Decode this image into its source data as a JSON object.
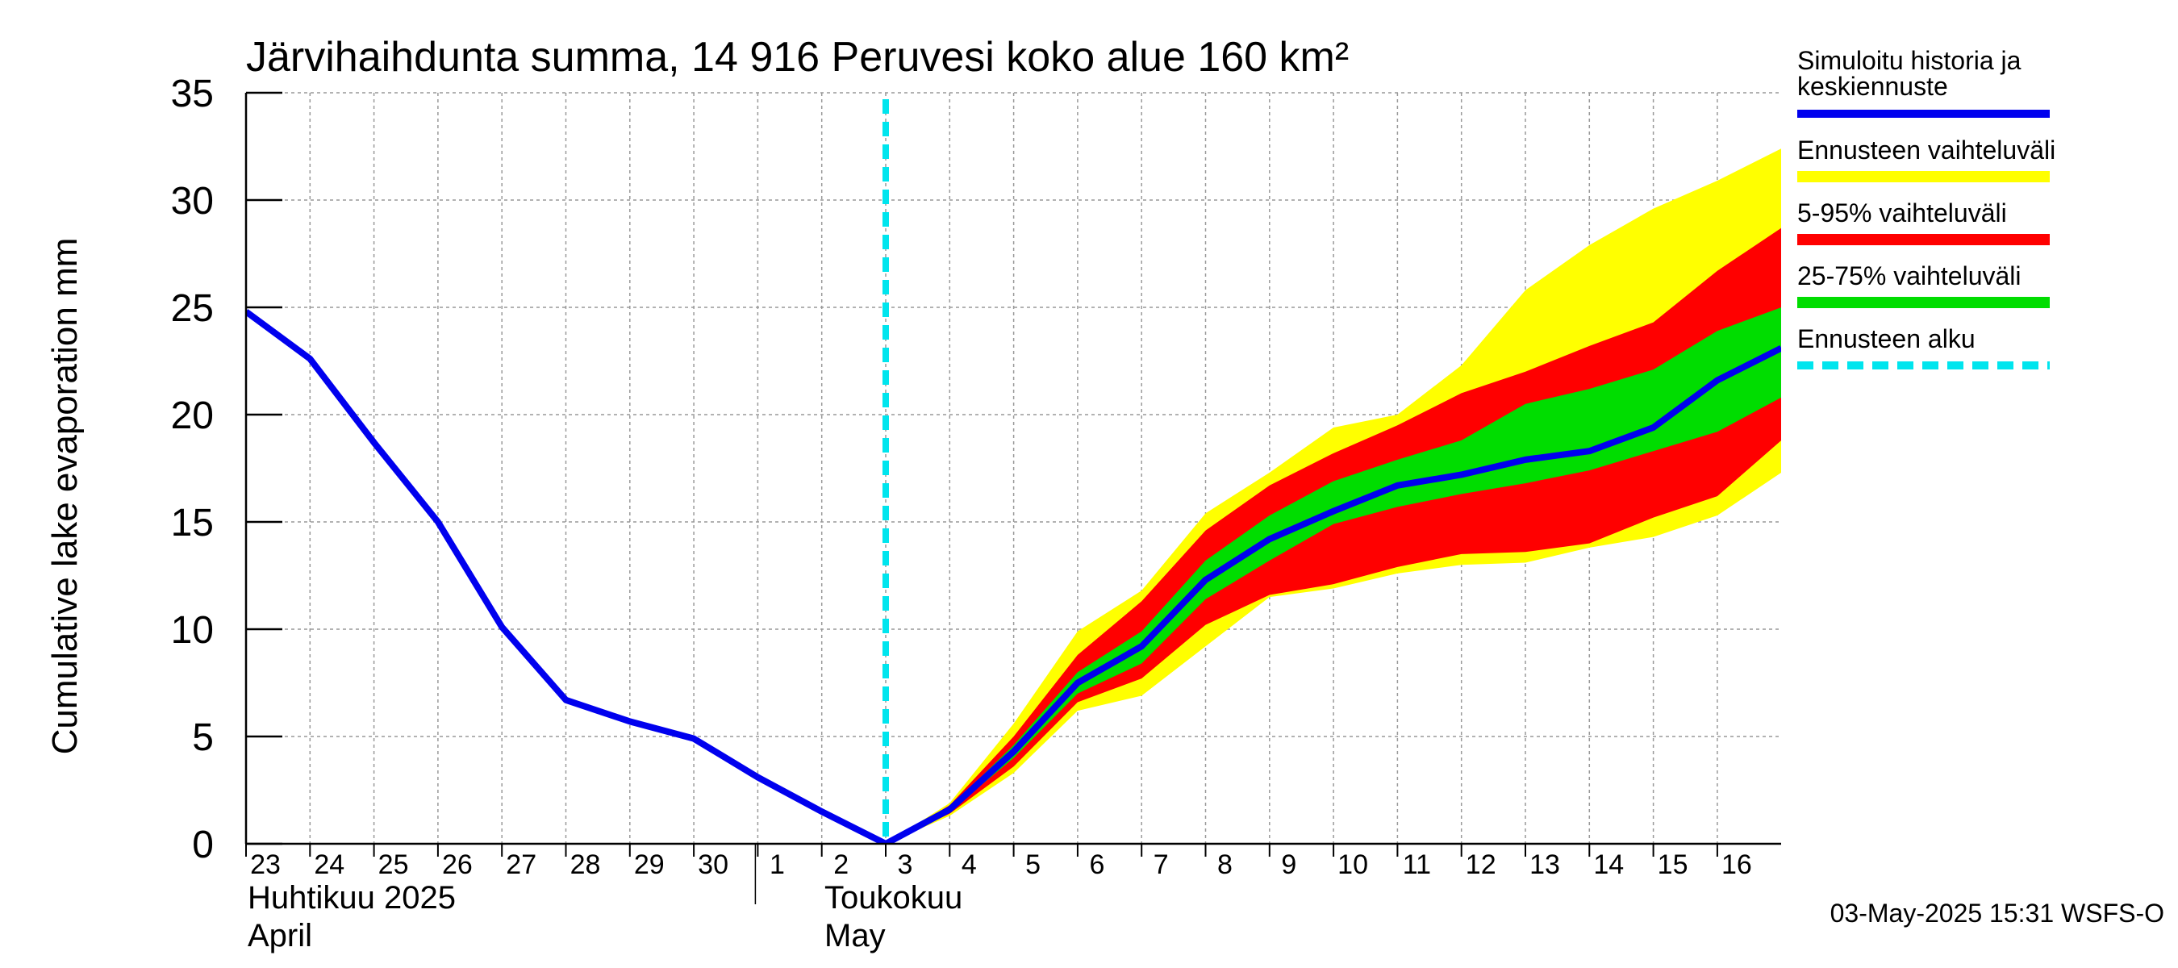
{
  "chart_data": {
    "type": "area",
    "title": "Järvihaihdunta summa, 14 916 Peruvesi koko alue 160 km²",
    "ylabel": "Cumulative lake evaporation   mm",
    "ylim": [
      0,
      35
    ],
    "yticks": [
      0,
      5,
      10,
      15,
      20,
      25,
      30,
      35
    ],
    "x_day_labels": [
      "23",
      "24",
      "25",
      "26",
      "27",
      "28",
      "29",
      "30",
      "1",
      "2",
      "3",
      "4",
      "5",
      "6",
      "7",
      "8",
      "9",
      "10",
      "11",
      "12",
      "13",
      "14",
      "15",
      "16"
    ],
    "month_labels": [
      {
        "line1": "Huhtikuu  2025",
        "line2": "April"
      },
      {
        "line1": "Toukokuu",
        "line2": "May"
      }
    ],
    "forecast_start_label": "3",
    "history": {
      "name": "Simuloitu historia ja keskiennuste",
      "color": "#0000ee",
      "x": [
        "23",
        "24",
        "25",
        "26",
        "27",
        "28",
        "29",
        "30",
        "1",
        "2",
        "3"
      ],
      "values": [
        24.8,
        22.6,
        18.7,
        15.0,
        10.1,
        6.7,
        5.7,
        4.9,
        3.1,
        1.5,
        0.0
      ]
    },
    "forecast_x": [
      "3",
      "4",
      "5",
      "6",
      "7",
      "8",
      "9",
      "10",
      "11",
      "12",
      "13",
      "14",
      "15",
      "16",
      "17"
    ],
    "median": [
      0.0,
      1.6,
      4.3,
      7.5,
      9.2,
      12.3,
      14.2,
      15.5,
      16.7,
      17.2,
      17.9,
      18.3,
      19.4,
      21.6,
      23.1
    ],
    "band_full": {
      "name": "Ennusteen vaihteluväli",
      "color": "#ffff00",
      "low": [
        0.0,
        1.3,
        3.3,
        6.2,
        6.9,
        9.2,
        11.5,
        11.9,
        12.6,
        13.0,
        13.1,
        13.8,
        14.3,
        15.3,
        17.3
      ],
      "high": [
        0.0,
        1.9,
        5.6,
        9.9,
        11.8,
        15.4,
        17.3,
        19.4,
        20.0,
        22.3,
        25.8,
        27.9,
        29.6,
        30.9,
        32.4
      ]
    },
    "band_5_95": {
      "name": "5-95% vaihteluväli",
      "color": "#ff0000",
      "low": [
        0.0,
        1.4,
        3.6,
        6.6,
        7.7,
        10.2,
        11.6,
        12.1,
        12.9,
        13.5,
        13.6,
        14.0,
        15.2,
        16.2,
        18.8
      ],
      "high": [
        0.0,
        1.8,
        5.0,
        8.8,
        11.3,
        14.6,
        16.7,
        18.2,
        19.5,
        21.0,
        22.0,
        23.2,
        24.3,
        26.7,
        28.7
      ]
    },
    "band_25_75": {
      "name": "25-75% vaihteluväli",
      "color": "#00dd00",
      "low": [
        0.0,
        1.5,
        4.0,
        7.0,
        8.4,
        11.4,
        13.2,
        14.9,
        15.7,
        16.3,
        16.8,
        17.4,
        18.3,
        19.2,
        20.8
      ],
      "high": [
        0.0,
        1.7,
        4.6,
        8.0,
        9.9,
        13.2,
        15.3,
        16.9,
        17.9,
        18.8,
        20.5,
        21.2,
        22.1,
        23.9,
        25.0
      ]
    },
    "forecast_start": {
      "name": "Ennusteen alku",
      "color": "#00e5ee"
    },
    "legend_position": "right",
    "grid": true
  },
  "legend": {
    "history_line1": "Simuloitu historia ja",
    "history_line2": "keskiennuste",
    "band_full": "Ennusteen vaihteluväli",
    "band_5_95": "5-95% vaihteluväli",
    "band_25_75": "25-75% vaihteluväli",
    "forecast_start": "Ennusteen alku"
  },
  "footer": "03-May-2025 15:31 WSFS-O"
}
